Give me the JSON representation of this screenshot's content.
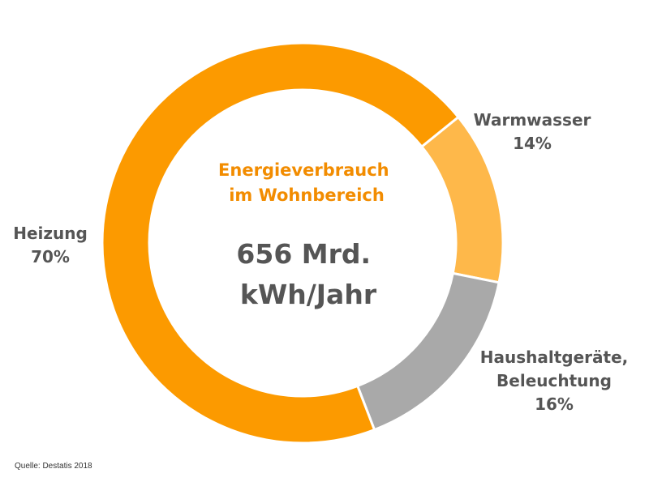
{
  "chart_data": {
    "type": "pie",
    "donut": true,
    "title": [
      "Energieverbrauch",
      "im Wohnbereich"
    ],
    "center_value": [
      "656 Mrd.",
      "kWh/Jahr"
    ],
    "slices": [
      {
        "key": "heizung",
        "label": [
          "Heizung"
        ],
        "percent_label": "70%",
        "value": 70,
        "color": "#fc9a00"
      },
      {
        "key": "warmwasser",
        "label": [
          "Warmwasser"
        ],
        "percent_label": "14%",
        "value": 14,
        "color": "#feb84a"
      },
      {
        "key": "haushaltgeraete",
        "label": [
          "Haushaltgeräte,",
          "Beleuchtung"
        ],
        "percent_label": "16%",
        "value": 16,
        "color": "#a9a9a9"
      }
    ],
    "legend": "none"
  },
  "colors": {
    "title": "#f28c00",
    "center_value": "#555555",
    "labels": "#555555",
    "separator": "#ffffff"
  },
  "source": "Quelle: Destatis 2018"
}
